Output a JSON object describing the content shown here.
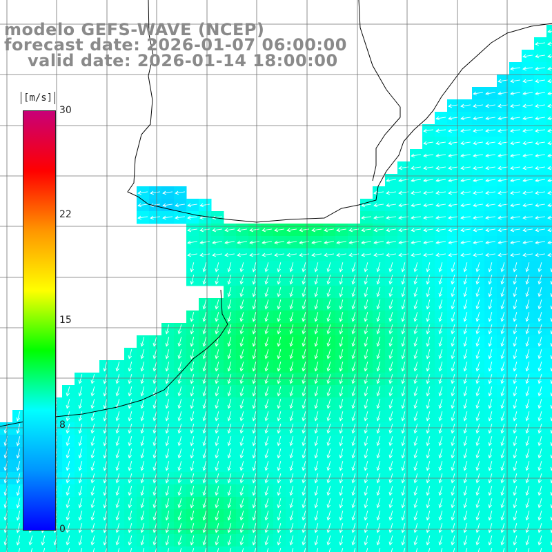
{
  "header": {
    "model_line": "modelo GEFS-WAVE (NCEP)",
    "forecast_line": "forecast date: 2026-01-07 06:00:00",
    "valid_line": "valid date: 2026-01-14 18:00:00"
  },
  "colorbar": {
    "unit": "[m/s]",
    "ticks": [
      "30",
      "22",
      "15",
      "8",
      "0"
    ],
    "range": [
      0,
      30
    ],
    "colors": [
      "#0000ff",
      "#0096ff",
      "#00ffff",
      "#00ff00",
      "#ffff00",
      "#ff9600",
      "#ff0000",
      "#c80078"
    ]
  },
  "map": {
    "background_land": "#ffffff",
    "coastline_color": "#000000",
    "grid_color": "#707070",
    "vector_color": "#ffffff",
    "field": "wind speed with direction arrows"
  }
}
